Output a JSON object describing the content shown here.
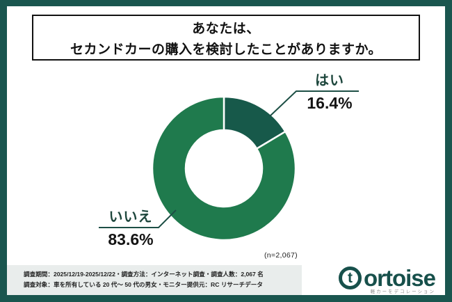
{
  "title": {
    "line1": "あなたは、",
    "line2": "セカンドカーの購入を検討したことがありますか。"
  },
  "chart_data": {
    "type": "pie",
    "donut": true,
    "title": "あなたは、セカンドカーの購入を検討したことがありますか。",
    "start_angle_deg": 0,
    "direction": "clockwise",
    "n_label": "(n=2,067)",
    "slices": [
      {
        "key": "yes",
        "label": "はい",
        "value": 16.4,
        "pct_label": "16.4%",
        "color": "#17594a"
      },
      {
        "key": "no",
        "label": "いいえ",
        "value": 83.6,
        "pct_label": "83.6%",
        "color": "#1f7a4d"
      }
    ]
  },
  "footer": {
    "line1": "調査期間：2025/12/19-2025/12/22・調査方法：インターネット調査・調査人数：2,067 名",
    "line2": "調査対象：車を所有している 20 代〜 50 代の男女・モニター提供元：RC リサーチデータ"
  },
  "logo": {
    "icon_letter": "t",
    "wordmark": "ortoise",
    "tagline": "軽カーをデコレーション"
  },
  "colors": {
    "frame": "#1a564f",
    "slice_yes": "#17594a",
    "slice_no": "#1f7a4d",
    "footer_bg": "#e9edec",
    "logo": "#17504b"
  }
}
